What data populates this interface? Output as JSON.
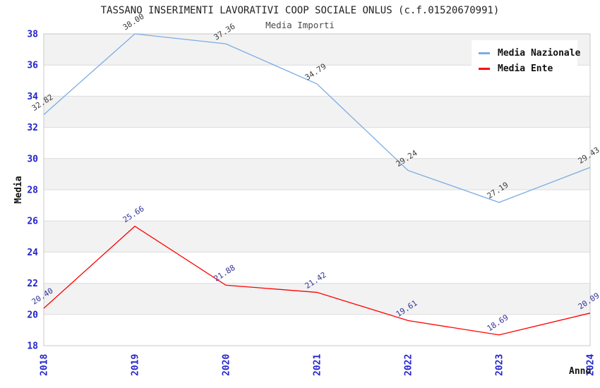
{
  "chart_data": {
    "type": "line",
    "title": "TASSANO INSERIMENTI LAVORATIVI COOP SOCIALE ONLUS (c.f.01520670991)",
    "subtitle": "Media Importi",
    "xlabel": "Anno",
    "ylabel": "Media",
    "categories": [
      "2018",
      "2019",
      "2020",
      "2021",
      "2022",
      "2023",
      "2024"
    ],
    "series": [
      {
        "name": "Media Nazionale",
        "color": "#7aace3",
        "label_color": "#3c3c3c",
        "values": [
          32.82,
          38.0,
          37.36,
          34.79,
          29.24,
          27.19,
          29.43
        ]
      },
      {
        "name": "Media Ente",
        "color": "#ff0000",
        "label_color": "#333399",
        "values": [
          20.4,
          25.66,
          21.88,
          21.42,
          19.61,
          18.69,
          20.09
        ]
      }
    ],
    "ylim": [
      18,
      38
    ],
    "ytick_step": 2,
    "yticks": [
      18,
      20,
      22,
      24,
      26,
      28,
      30,
      32,
      34,
      36,
      38
    ],
    "grid": true,
    "legend_position": "top-right",
    "band_colors": [
      "#f2f2f2",
      "#ffffff"
    ],
    "gridline_color": "#dcdcdc",
    "plot_border_color": "#c8c8c8",
    "tick_label_color": "#2323cc"
  }
}
